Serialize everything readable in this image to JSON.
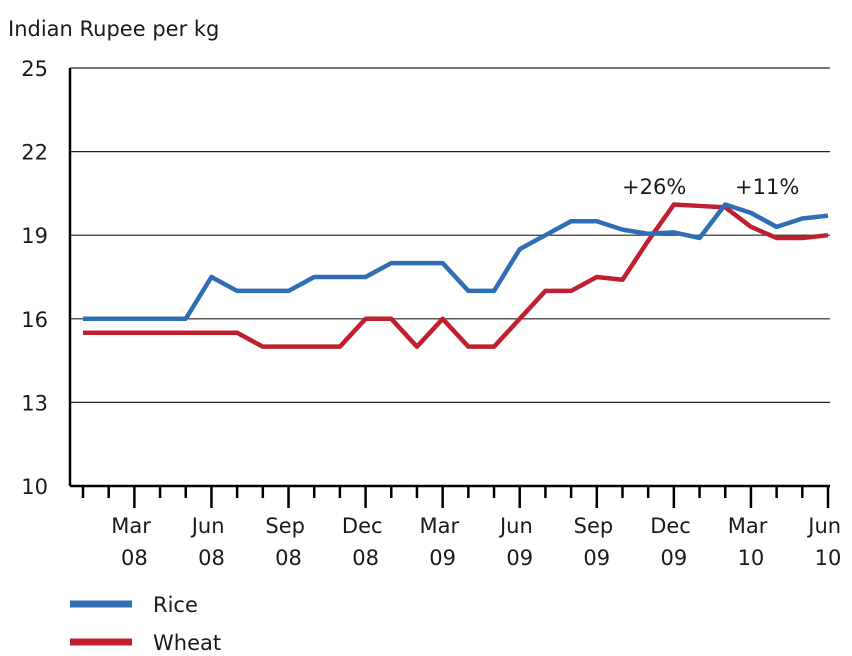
{
  "chart_data": {
    "type": "line",
    "y_axis_label": "Indian Rupee per kg",
    "categories": [
      null,
      null,
      "Mar 08",
      null,
      null,
      "Jun 08",
      null,
      null,
      "Sep 08",
      null,
      null,
      "Dec 08",
      null,
      null,
      "Mar 09",
      null,
      null,
      "Jun 09",
      null,
      null,
      "Sep 09",
      null,
      null,
      "Dec 09",
      null,
      null,
      "Mar 10",
      null,
      null,
      "Jun 10"
    ],
    "series": [
      {
        "name": "Rice",
        "color": "#2f6db5",
        "values": [
          16,
          16,
          16,
          16,
          16,
          17.5,
          17,
          17,
          17,
          17.5,
          17.5,
          17.5,
          18,
          18,
          18,
          17,
          17,
          18.5,
          19,
          19.5,
          19.5,
          19.2,
          19.05,
          19.1,
          18.9,
          20.1,
          19.8,
          19.3,
          19.6,
          19.7
        ]
      },
      {
        "name": "Wheat",
        "color": "#c0202e",
        "values": [
          15.5,
          15.5,
          15.5,
          15.5,
          15.5,
          15.5,
          15.5,
          15,
          15,
          15,
          15,
          16,
          16,
          15,
          16,
          15,
          15,
          16,
          17,
          17,
          17.5,
          17.4,
          18.8,
          20.1,
          20.05,
          20.0,
          19.3,
          18.9,
          18.9,
          19.0
        ]
      }
    ],
    "annotations": [
      "+26%",
      "+11%"
    ],
    "ylim": [
      10,
      25
    ],
    "yticks": [
      10,
      13,
      16,
      19,
      22,
      25
    ],
    "grid": true,
    "legend": "bottom-left"
  }
}
